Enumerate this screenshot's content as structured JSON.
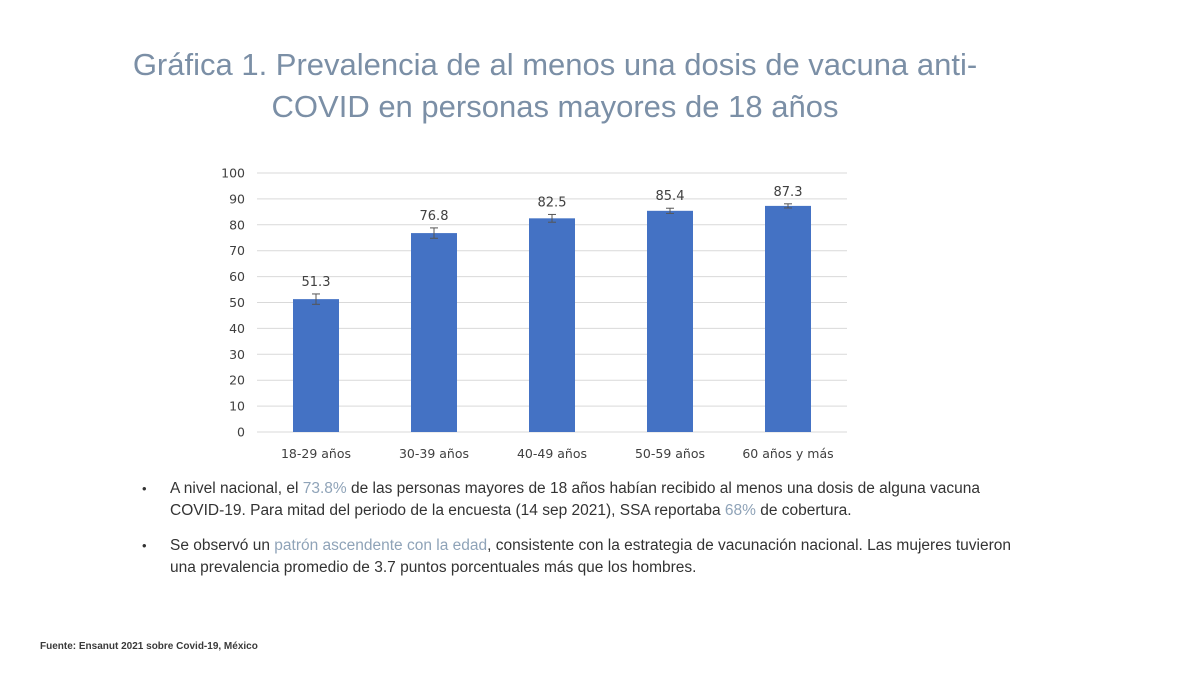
{
  "title_line1": "Gráfica 1. Prevalencia de al menos una dosis de vacuna anti-",
  "title_line2": "COVID en personas mayores de 18 años",
  "chart_data": {
    "type": "bar",
    "categories": [
      "18-29 años",
      "30-39 años",
      "40-49 años",
      "50-59 años",
      "60 años y más"
    ],
    "values": [
      51.3,
      76.8,
      82.5,
      85.4,
      87.3
    ],
    "data_labels": [
      "51.3",
      "76.8",
      "82.5",
      "85.4",
      "87.3"
    ],
    "error_bars": [
      [
        49.3,
        53.3
      ],
      [
        74.8,
        78.8
      ],
      [
        81.0,
        84.0
      ],
      [
        84.4,
        86.4
      ],
      [
        86.5,
        88.1
      ]
    ],
    "ylim": [
      0,
      100
    ],
    "yticks": [
      "0",
      "10",
      "20",
      "30",
      "40",
      "50",
      "60",
      "70",
      "80",
      "90",
      "100"
    ],
    "grid": true,
    "bar_color": "#4472c4"
  },
  "bullets": {
    "b1": {
      "t1": "A nivel nacional, el ",
      "h1": "73.8%",
      "t2": " de las personas mayores de 18 años habían recibido al menos una dosis de alguna vacuna COVID-19. Para mitad del periodo de la encuesta (14 sep 2021), SSA reportaba ",
      "h2": "68%",
      "t3": " de cobertura."
    },
    "b2": {
      "t1": "Se observó un ",
      "h1": "patrón ascendente con la edad",
      "t2": ", consistente con la estrategia de vacunación nacional. Las mujeres tuvieron una prevalencia promedio de 3.7 puntos porcentuales más que los hombres."
    },
    "symbol": "•"
  },
  "source": "Fuente: Ensanut 2021 sobre Covid-19, México",
  "colors": {
    "title": "#7b8fa6",
    "highlight": "#8fa3b8",
    "bar": "#4472c4"
  }
}
